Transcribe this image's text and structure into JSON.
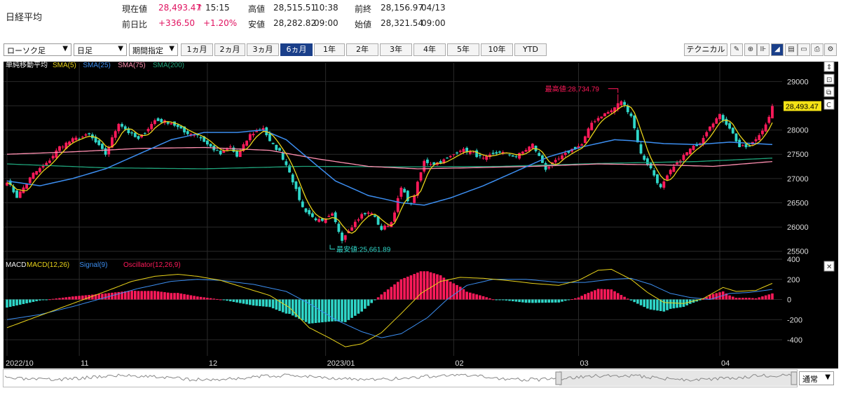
{
  "header": {
    "index_name": "日経平均",
    "current_label": "現在値",
    "current_value": "28,493.47",
    "current_arrow": "↑",
    "current_time": "15:15",
    "change_label": "前日比",
    "change_value": "+336.50",
    "change_pct": "+1.20%",
    "high_label": "高値",
    "high_value": "28,515.51",
    "high_time": "10:38",
    "low_label": "安値",
    "low_value": "28,282.82",
    "low_time": "09:00",
    "prev_label": "前終",
    "prev_value": "28,156.97",
    "prev_date": "04/13",
    "open_label": "始値",
    "open_value": "28,321.54",
    "open_time": "09:00"
  },
  "toolbar": {
    "chart_type": "ローソク足",
    "interval": "日足",
    "range_mode": "期間指定",
    "periods": [
      "1ヵ月",
      "2ヵ月",
      "3ヵ月",
      "6ヵ月",
      "1年",
      "2年",
      "3年",
      "4年",
      "5年",
      "10年",
      "YTD"
    ],
    "active_period": "6ヵ月",
    "technical_label": "テクニカル",
    "scroll_mode": "通常"
  },
  "colors": {
    "background": "#000000",
    "up": "#ff1a5a",
    "down": "#2fd6c8",
    "sma5": "#e8d21a",
    "sma25": "#3c8ef0",
    "sma75": "#ff8fb0",
    "sma200": "#1fa37a",
    "macd": "#e8d21a",
    "signal": "#3c8ef0"
  },
  "chart_data": {
    "type": "candlestick",
    "price_axis": {
      "ticks": [
        25500,
        26000,
        26500,
        27000,
        27500,
        28000,
        28500,
        29000
      ],
      "range": [
        25380,
        29380
      ]
    },
    "macd_axis": {
      "ticks": [
        -400,
        -200,
        0,
        200,
        400
      ],
      "range": [
        -560,
        400
      ]
    },
    "x_labels": [
      {
        "label": "2022/10",
        "idx": 0
      },
      {
        "label": "11",
        "idx": 22
      },
      {
        "label": "12",
        "idx": 61
      },
      {
        "label": "2023/01",
        "idx": 97
      },
      {
        "label": "02",
        "idx": 136
      },
      {
        "label": "03",
        "idx": 174
      },
      {
        "label": "04",
        "idx": 217
      }
    ],
    "current_price_label": "28,493.47",
    "max_annotation": {
      "text": "最高値:28,734.79",
      "idx": 186,
      "value": 28734.79
    },
    "min_annotation": {
      "text": "最安値:25,661.89",
      "idx": 102,
      "value": 25661.89
    },
    "main_legend": {
      "title": "単純移動平均",
      "items": [
        "SMA(5)",
        "SMA(25)",
        "SMA(75)",
        "SMA(200)"
      ]
    },
    "sub_legend": {
      "title": "MACD",
      "items": [
        "MACD(12,26)",
        "Signal(9)",
        "Oscillator(12,26,9)"
      ]
    },
    "close_anchors": [
      [
        0,
        26950
      ],
      [
        3,
        26620
      ],
      [
        8,
        27100
      ],
      [
        12,
        27300
      ],
      [
        16,
        27650
      ],
      [
        20,
        27800
      ],
      [
        25,
        27900
      ],
      [
        30,
        27500
      ],
      [
        34,
        28150
      ],
      [
        37,
        27950
      ],
      [
        40,
        27800
      ],
      [
        45,
        28200
      ],
      [
        50,
        28150
      ],
      [
        54,
        27950
      ],
      [
        58,
        27900
      ],
      [
        61,
        27700
      ],
      [
        65,
        27500
      ],
      [
        68,
        27650
      ],
      [
        70,
        27450
      ],
      [
        74,
        27900
      ],
      [
        78,
        28050
      ],
      [
        80,
        27750
      ],
      [
        83,
        27550
      ],
      [
        86,
        27150
      ],
      [
        88,
        26750
      ],
      [
        90,
        26400
      ],
      [
        93,
        26200
      ],
      [
        96,
        26100
      ],
      [
        99,
        26250
      ],
      [
        102,
        25750
      ],
      [
        104,
        25950
      ],
      [
        108,
        26250
      ],
      [
        111,
        26300
      ],
      [
        114,
        25950
      ],
      [
        117,
        26100
      ],
      [
        120,
        26800
      ],
      [
        123,
        26450
      ],
      [
        127,
        27350
      ],
      [
        130,
        27300
      ],
      [
        134,
        27400
      ],
      [
        138,
        27600
      ],
      [
        141,
        27550
      ],
      [
        145,
        27400
      ],
      [
        150,
        27550
      ],
      [
        155,
        27450
      ],
      [
        160,
        27700
      ],
      [
        164,
        27200
      ],
      [
        168,
        27400
      ],
      [
        172,
        27600
      ],
      [
        175,
        27700
      ],
      [
        178,
        28150
      ],
      [
        181,
        28300
      ],
      [
        184,
        28400
      ],
      [
        187,
        28600
      ],
      [
        190,
        28300
      ],
      [
        193,
        27500
      ],
      [
        196,
        27200
      ],
      [
        199,
        26800
      ],
      [
        202,
        27150
      ],
      [
        205,
        27400
      ],
      [
        208,
        27600
      ],
      [
        211,
        27750
      ],
      [
        214,
        28100
      ],
      [
        217,
        28300
      ],
      [
        220,
        28050
      ],
      [
        223,
        27650
      ],
      [
        226,
        27650
      ],
      [
        229,
        27900
      ],
      [
        232,
        28250
      ],
      [
        233,
        28493
      ]
    ],
    "sma25_anchors": [
      [
        0,
        26950
      ],
      [
        10,
        26850
      ],
      [
        20,
        27000
      ],
      [
        30,
        27200
      ],
      [
        40,
        27500
      ],
      [
        50,
        27800
      ],
      [
        60,
        27950
      ],
      [
        70,
        27950
      ],
      [
        78,
        28000
      ],
      [
        85,
        27800
      ],
      [
        92,
        27400
      ],
      [
        100,
        26950
      ],
      [
        110,
        26650
      ],
      [
        120,
        26500
      ],
      [
        127,
        26450
      ],
      [
        135,
        26600
      ],
      [
        145,
        26850
      ],
      [
        155,
        27150
      ],
      [
        165,
        27450
      ],
      [
        175,
        27650
      ],
      [
        185,
        27800
      ],
      [
        190,
        27780
      ],
      [
        200,
        27720
      ],
      [
        210,
        27700
      ],
      [
        220,
        27750
      ],
      [
        233,
        27700
      ]
    ],
    "sma75_anchors": [
      [
        0,
        27500
      ],
      [
        20,
        27550
      ],
      [
        40,
        27620
      ],
      [
        60,
        27640
      ],
      [
        80,
        27580
      ],
      [
        95,
        27400
      ],
      [
        110,
        27250
      ],
      [
        125,
        27200
      ],
      [
        140,
        27220
      ],
      [
        160,
        27250
      ],
      [
        180,
        27300
      ],
      [
        200,
        27280
      ],
      [
        215,
        27250
      ],
      [
        233,
        27350
      ]
    ],
    "sma200_anchors": [
      [
        0,
        27300
      ],
      [
        30,
        27220
      ],
      [
        60,
        27200
      ],
      [
        90,
        27250
      ],
      [
        120,
        27240
      ],
      [
        150,
        27250
      ],
      [
        180,
        27310
      ],
      [
        210,
        27350
      ],
      [
        233,
        27420
      ]
    ],
    "macd_anchors": [
      [
        0,
        -280
      ],
      [
        10,
        -160
      ],
      [
        20,
        -40
      ],
      [
        30,
        80
      ],
      [
        38,
        180
      ],
      [
        45,
        230
      ],
      [
        52,
        250
      ],
      [
        58,
        230
      ],
      [
        65,
        190
      ],
      [
        72,
        120
      ],
      [
        80,
        40
      ],
      [
        86,
        -80
      ],
      [
        92,
        -280
      ],
      [
        98,
        -380
      ],
      [
        103,
        -470
      ],
      [
        108,
        -440
      ],
      [
        114,
        -330
      ],
      [
        120,
        -140
      ],
      [
        126,
        60
      ],
      [
        132,
        180
      ],
      [
        138,
        220
      ],
      [
        145,
        210
      ],
      [
        152,
        190
      ],
      [
        160,
        160
      ],
      [
        168,
        140
      ],
      [
        174,
        190
      ],
      [
        180,
        290
      ],
      [
        184,
        300
      ],
      [
        190,
        200
      ],
      [
        195,
        70
      ],
      [
        200,
        -30
      ],
      [
        206,
        -40
      ],
      [
        212,
        10
      ],
      [
        218,
        120
      ],
      [
        222,
        80
      ],
      [
        228,
        90
      ],
      [
        233,
        160
      ]
    ],
    "signal_anchors": [
      [
        0,
        -200
      ],
      [
        10,
        -150
      ],
      [
        20,
        -70
      ],
      [
        30,
        20
      ],
      [
        40,
        110
      ],
      [
        50,
        180
      ],
      [
        58,
        200
      ],
      [
        65,
        190
      ],
      [
        75,
        150
      ],
      [
        85,
        80
      ],
      [
        92,
        -40
      ],
      [
        100,
        -200
      ],
      [
        108,
        -320
      ],
      [
        114,
        -380
      ],
      [
        120,
        -340
      ],
      [
        128,
        -180
      ],
      [
        134,
        0
      ],
      [
        140,
        140
      ],
      [
        148,
        200
      ],
      [
        158,
        200
      ],
      [
        168,
        170
      ],
      [
        176,
        170
      ],
      [
        184,
        200
      ],
      [
        190,
        210
      ],
      [
        196,
        150
      ],
      [
        202,
        60
      ],
      [
        208,
        20
      ],
      [
        214,
        0
      ],
      [
        220,
        60
      ],
      [
        226,
        70
      ],
      [
        233,
        100
      ]
    ]
  }
}
